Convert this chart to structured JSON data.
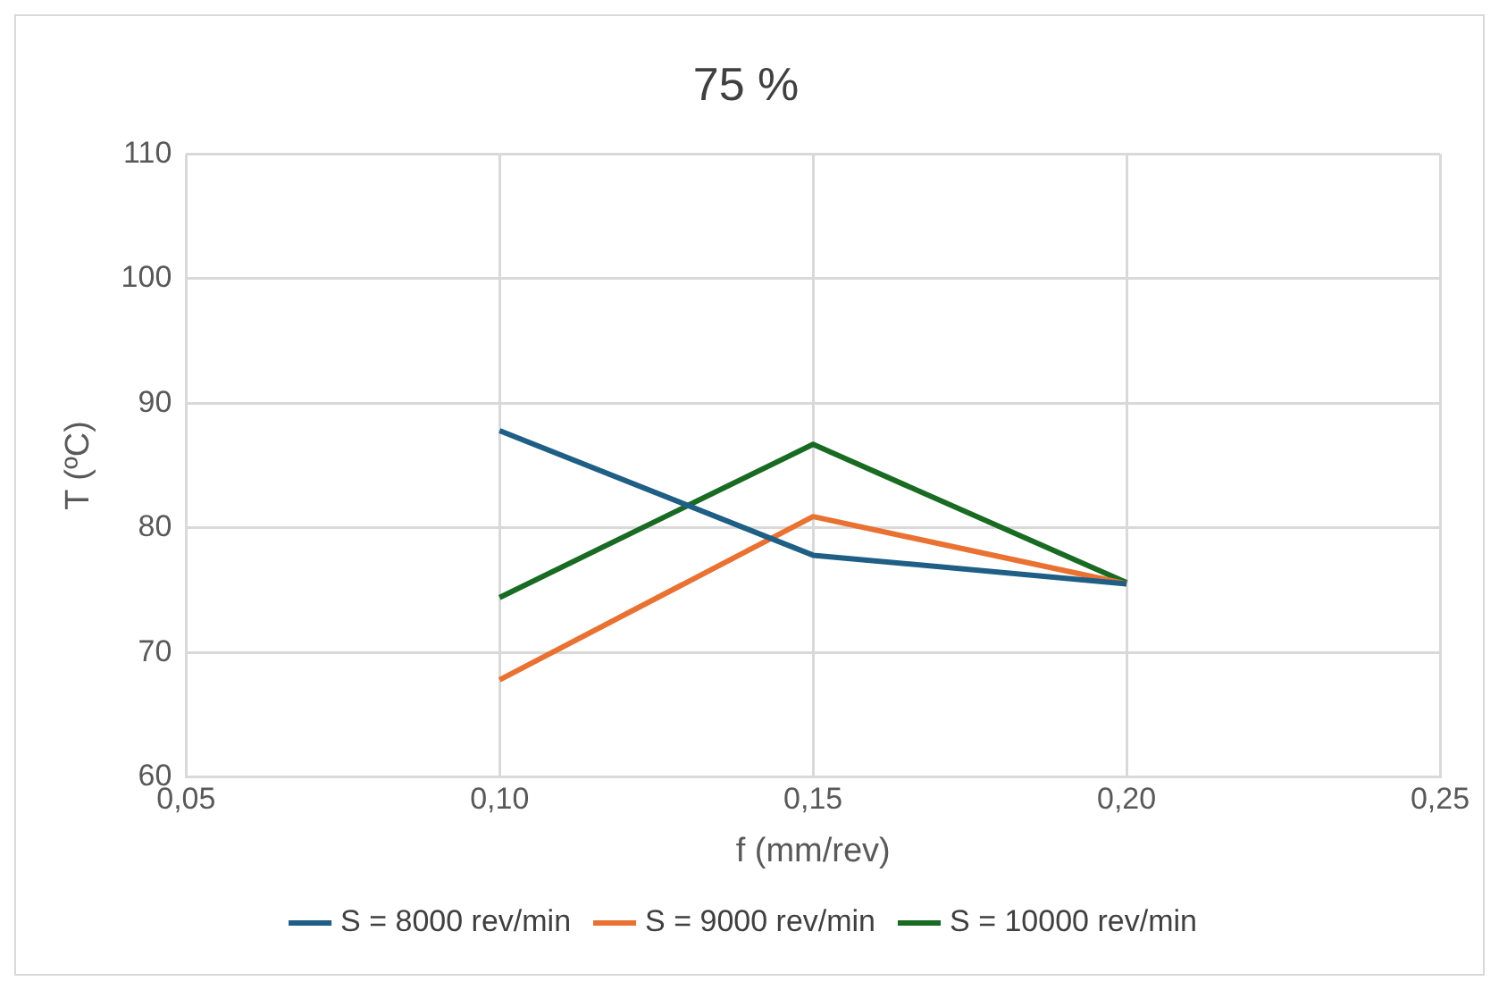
{
  "chart_data": {
    "type": "line",
    "title": "75 %",
    "xlabel": "f (mm/rev)",
    "ylabel": "T (ºC)",
    "x": [
      0.1,
      0.15,
      0.2
    ],
    "series": [
      {
        "name": "S = 8000 rev/min",
        "color": "#1f5f85",
        "values": [
          87.8,
          77.8,
          75.5
        ]
      },
      {
        "name": "S = 9000 rev/min",
        "color": "#e97132",
        "values": [
          67.8,
          80.9,
          75.5
        ]
      },
      {
        "name": "S = 10000 rev/min",
        "color": "#196b24",
        "values": [
          74.4,
          86.7,
          75.6
        ]
      }
    ],
    "xlim": [
      0.05,
      0.25
    ],
    "xticks": [
      {
        "value": 0.05,
        "label": "0,05"
      },
      {
        "value": 0.1,
        "label": "0,10"
      },
      {
        "value": 0.15,
        "label": "0,15"
      },
      {
        "value": 0.2,
        "label": "0,20"
      },
      {
        "value": 0.25,
        "label": "0,25"
      }
    ],
    "ylim": [
      60,
      110
    ],
    "yticks": [
      60,
      70,
      80,
      90,
      100,
      110
    ],
    "grid": true,
    "legend": "bottom",
    "marker": "none",
    "line_style": "solid"
  }
}
